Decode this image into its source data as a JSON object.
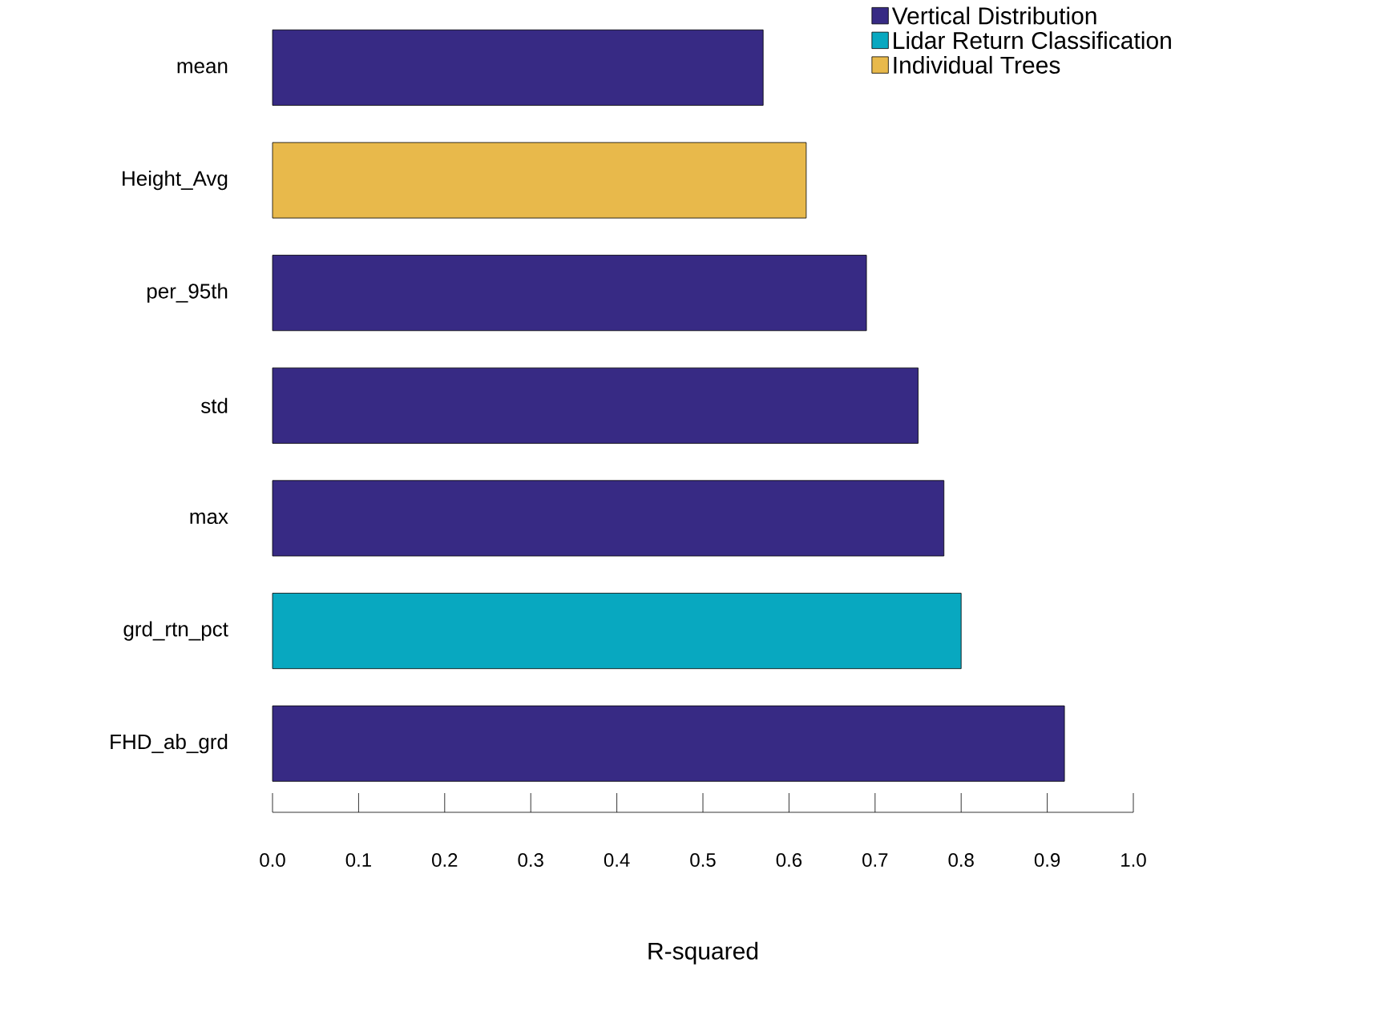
{
  "chart_data": {
    "type": "bar",
    "orientation": "horizontal",
    "xlabel": "R-squared",
    "categories": [
      "mean",
      "Height_Avg",
      "per_95th",
      "std",
      "max",
      "grd_rtn_pct",
      "FHD_ab_grd"
    ],
    "series": [
      {
        "name": "Vertical Distribution",
        "color": "#372a84",
        "values": [
          0.57,
          null,
          0.69,
          0.75,
          0.78,
          null,
          0.92
        ]
      },
      {
        "name": "Lidar Return Classification",
        "color": "#08a8c0",
        "values": [
          null,
          null,
          null,
          null,
          null,
          0.8,
          null
        ]
      },
      {
        "name": "Individual Trees",
        "color": "#e8b94b",
        "values": [
          null,
          0.62,
          null,
          null,
          null,
          null,
          null
        ]
      }
    ],
    "xlim": [
      0,
      1
    ],
    "xticks": [
      {
        "value": 0,
        "label": "0.0"
      },
      0.1,
      0.2,
      0.3,
      0.4,
      0.5,
      0.6,
      0.7,
      0.8,
      0.9,
      {
        "value": 1,
        "label": "1.0"
      }
    ],
    "legend": "top right",
    "grid": false
  }
}
